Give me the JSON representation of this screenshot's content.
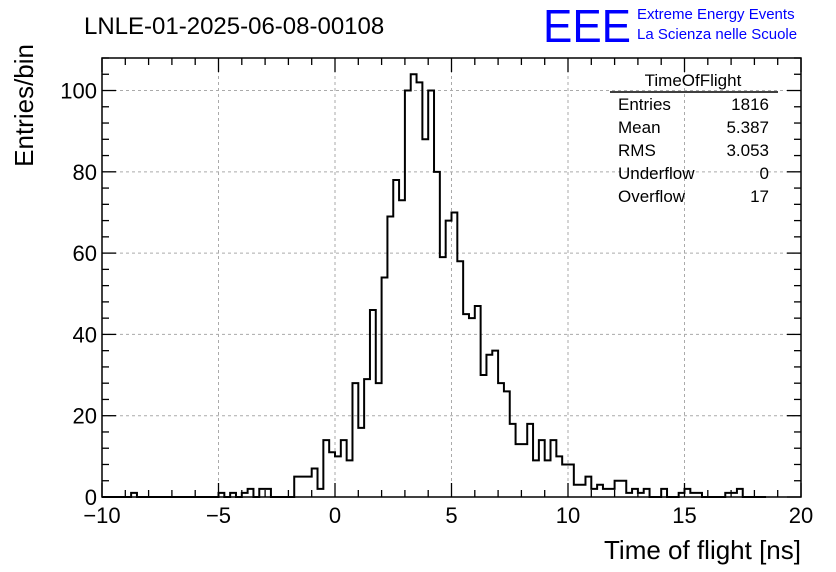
{
  "chart_data": {
    "type": "bar",
    "title": "LNLE-01-2025-06-08-00108",
    "xlabel": "Time of flight [ns]",
    "ylabel": "Entries/bin",
    "xlim": [
      -10,
      20
    ],
    "ylim": [
      0,
      108
    ],
    "grid": true,
    "bin_width": 0.25,
    "xticks": [
      -10,
      -5,
      0,
      5,
      10,
      15,
      20
    ],
    "xtick_labels": [
      "−10",
      "−5",
      "0",
      "5",
      "10",
      "15",
      "20"
    ],
    "yticks": [
      0,
      20,
      40,
      60,
      80,
      100
    ],
    "ytick_labels": [
      "0",
      "20",
      "40",
      "60",
      "80",
      "100"
    ],
    "values": [
      0,
      0,
      0,
      0,
      0,
      1,
      0,
      0,
      0,
      0,
      0,
      0,
      0,
      0,
      0,
      0,
      0,
      0,
      0,
      0,
      1,
      0,
      1,
      0,
      1,
      2,
      0,
      2,
      2,
      0,
      0,
      0,
      0,
      5,
      5,
      5,
      7,
      2,
      14,
      11,
      10,
      14,
      9,
      28,
      17,
      29,
      46,
      28,
      54,
      69,
      78,
      73,
      100,
      104,
      102,
      88,
      100,
      80,
      59,
      68,
      70,
      58,
      45,
      44,
      47,
      30,
      35,
      36,
      28,
      26,
      18,
      13,
      13,
      18,
      9,
      14,
      9,
      14,
      10,
      8,
      8,
      3,
      3,
      5,
      2,
      3,
      2,
      2,
      4,
      4,
      1,
      2,
      1,
      2,
      0,
      0,
      2,
      0,
      0,
      1,
      2,
      1,
      1,
      0,
      0,
      0,
      0,
      1,
      1,
      2,
      0,
      0,
      0,
      0
    ],
    "legend_placement": "top-right",
    "stats_box": {
      "title": "TimeOfFlight",
      "rows": [
        {
          "label": "Entries",
          "value": "1816"
        },
        {
          "label": "Mean",
          "value": "5.387"
        },
        {
          "label": "RMS",
          "value": "3.053"
        },
        {
          "label": "Underflow",
          "value": "0"
        },
        {
          "label": "Overflow",
          "value": "17"
        }
      ]
    }
  },
  "logo": {
    "text": "EEE",
    "line1": "Extreme Energy Events",
    "line2": "La Scienza nelle Scuole",
    "color": "#0000ff"
  },
  "colors": {
    "histogram": "#000000",
    "grid": "#aaaaaa",
    "frame": "#000000"
  }
}
